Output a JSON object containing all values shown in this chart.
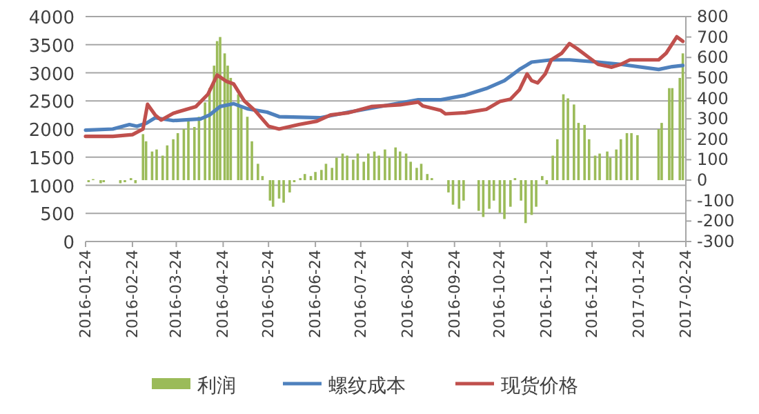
{
  "chart_data": {
    "type": "line",
    "xlim": [
      "2016-01-24",
      "2017-02-24"
    ],
    "xticks": [
      "2016-01-24",
      "2016-02-24",
      "2016-03-24",
      "2016-04-24",
      "2016-05-24",
      "2016-06-24",
      "2016-07-24",
      "2016-08-24",
      "2016-09-24",
      "2016-10-24",
      "2016-11-24",
      "2016-12-24",
      "2017-01-24",
      "2017-02-24"
    ],
    "ylim": [
      0,
      4000
    ],
    "yticks": [
      0,
      500,
      1000,
      1500,
      2000,
      2500,
      3000,
      3500,
      4000
    ],
    "y2lim": [
      -300,
      800
    ],
    "y2ticks": [
      -300,
      -200,
      -100,
      0,
      100,
      200,
      300,
      400,
      500,
      600,
      700,
      800
    ],
    "grid": "y",
    "legend": "bottom",
    "series": [
      {
        "name": "利润",
        "type": "bar",
        "axis": "y2",
        "color": "#9bbb59",
        "x": [
          "2016-01-26",
          "2016-01-29",
          "2016-02-03",
          "2016-02-05",
          "2016-02-16",
          "2016-02-19",
          "2016-02-23",
          "2016-02-26",
          "2016-03-02",
          "2016-03-04",
          "2016-03-08",
          "2016-03-11",
          "2016-03-15",
          "2016-03-18",
          "2016-03-22",
          "2016-03-25",
          "2016-03-29",
          "2016-04-01",
          "2016-04-05",
          "2016-04-08",
          "2016-04-12",
          "2016-04-15",
          "2016-04-18",
          "2016-04-20",
          "2016-04-22",
          "2016-04-25",
          "2016-04-27",
          "2016-04-29",
          "2016-05-04",
          "2016-05-06",
          "2016-05-10",
          "2016-05-13",
          "2016-05-17",
          "2016-05-20",
          "2016-05-25",
          "2016-05-27",
          "2016-05-31",
          "2016-06-03",
          "2016-06-07",
          "2016-06-10",
          "2016-06-14",
          "2016-06-17",
          "2016-06-21",
          "2016-06-24",
          "2016-06-28",
          "2016-07-01",
          "2016-07-05",
          "2016-07-08",
          "2016-07-12",
          "2016-07-15",
          "2016-07-19",
          "2016-07-22",
          "2016-07-26",
          "2016-07-29",
          "2016-08-02",
          "2016-08-05",
          "2016-08-09",
          "2016-08-12",
          "2016-08-16",
          "2016-08-19",
          "2016-08-23",
          "2016-08-26",
          "2016-08-30",
          "2016-09-02",
          "2016-09-06",
          "2016-09-09",
          "2016-09-20",
          "2016-09-23",
          "2016-09-27",
          "2016-09-30",
          "2016-10-10",
          "2016-10-13",
          "2016-10-17",
          "2016-10-20",
          "2016-10-24",
          "2016-10-27",
          "2016-10-31",
          "2016-11-03",
          "2016-11-07",
          "2016-11-10",
          "2016-11-14",
          "2016-11-17",
          "2016-11-21",
          "2016-11-24",
          "2016-11-28",
          "2016-12-01",
          "2016-12-05",
          "2016-12-08",
          "2016-12-12",
          "2016-12-15",
          "2016-12-19",
          "2016-12-22",
          "2016-12-26",
          "2016-12-29",
          "2017-01-03",
          "2017-01-05",
          "2017-01-09",
          "2017-01-12",
          "2017-01-16",
          "2017-01-19",
          "2017-01-23",
          "2017-02-06",
          "2017-02-08",
          "2017-02-13",
          "2017-02-15",
          "2017-02-20",
          "2017-02-22"
        ],
        "values": [
          -10,
          5,
          -15,
          -10,
          -15,
          -10,
          10,
          -15,
          225,
          190,
          140,
          150,
          120,
          170,
          200,
          230,
          250,
          300,
          260,
          310,
          380,
          450,
          560,
          680,
          700,
          620,
          560,
          500,
          420,
          360,
          310,
          190,
          80,
          20,
          -100,
          -130,
          -90,
          -110,
          -60,
          -10,
          10,
          30,
          20,
          40,
          50,
          80,
          60,
          110,
          130,
          120,
          100,
          130,
          90,
          130,
          140,
          120,
          150,
          110,
          160,
          140,
          130,
          90,
          60,
          80,
          30,
          10,
          -60,
          -120,
          -140,
          -100,
          -150,
          -180,
          -140,
          -100,
          -160,
          -190,
          -130,
          10,
          -100,
          -210,
          -170,
          -130,
          20,
          -20,
          120,
          200,
          420,
          400,
          370,
          280,
          270,
          200,
          120,
          130,
          140,
          110,
          150,
          200,
          230,
          230,
          220,
          250,
          280,
          450,
          450,
          500,
          620
        ]
      },
      {
        "name": "螺纹成本",
        "color": "#4f81bd",
        "x": [
          "2016-01-24",
          "2016-02-11",
          "2016-02-22",
          "2016-02-27",
          "2016-03-04",
          "2016-03-10",
          "2016-03-22",
          "2016-04-09",
          "2016-04-15",
          "2016-04-22",
          "2016-05-01",
          "2016-05-10",
          "2016-05-23",
          "2016-05-31",
          "2016-06-27",
          "2016-07-16",
          "2016-08-10",
          "2016-08-31",
          "2016-09-15",
          "2016-10-01",
          "2016-10-15",
          "2016-10-27",
          "2016-11-06",
          "2016-11-14",
          "2016-11-27",
          "2016-12-09",
          "2016-12-28",
          "2017-01-12",
          "2017-02-06",
          "2017-02-15",
          "2017-02-22"
        ],
        "values": [
          1980,
          2000,
          2080,
          2050,
          2100,
          2200,
          2150,
          2180,
          2250,
          2400,
          2450,
          2360,
          2300,
          2220,
          2200,
          2300,
          2420,
          2520,
          2520,
          2600,
          2720,
          2860,
          3060,
          3190,
          3230,
          3230,
          3190,
          3150,
          3060,
          3110,
          3130
        ]
      },
      {
        "name": "现货价格",
        "color": "#c0504d",
        "x": [
          "2016-01-24",
          "2016-02-11",
          "2016-02-24",
          "2016-03-02",
          "2016-03-05",
          "2016-03-10",
          "2016-03-14",
          "2016-03-22",
          "2016-04-06",
          "2016-04-14",
          "2016-04-20",
          "2016-04-26",
          "2016-05-01",
          "2016-05-08",
          "2016-05-15",
          "2016-05-24",
          "2016-05-31",
          "2016-06-13",
          "2016-06-25",
          "2016-07-04",
          "2016-07-16",
          "2016-07-31",
          "2016-08-19",
          "2016-08-31",
          "2016-09-03",
          "2016-09-15",
          "2016-09-18",
          "2016-10-01",
          "2016-10-15",
          "2016-10-24",
          "2016-10-31",
          "2016-11-06",
          "2016-11-11",
          "2016-11-14",
          "2016-11-18",
          "2016-11-23",
          "2016-11-27",
          "2016-12-04",
          "2016-12-09",
          "2016-12-14",
          "2016-12-22",
          "2016-12-28",
          "2017-01-06",
          "2017-01-12",
          "2017-01-18",
          "2017-02-06",
          "2017-02-11",
          "2017-02-18",
          "2017-02-22"
        ],
        "values": [
          1870,
          1870,
          1900,
          2000,
          2440,
          2250,
          2160,
          2280,
          2400,
          2620,
          2960,
          2850,
          2800,
          2500,
          2330,
          2050,
          2000,
          2080,
          2140,
          2250,
          2290,
          2400,
          2430,
          2480,
          2410,
          2330,
          2270,
          2290,
          2350,
          2490,
          2530,
          2700,
          2980,
          2860,
          2820,
          2980,
          3230,
          3350,
          3520,
          3430,
          3270,
          3150,
          3100,
          3150,
          3230,
          3230,
          3350,
          3640,
          3560
        ]
      }
    ]
  }
}
